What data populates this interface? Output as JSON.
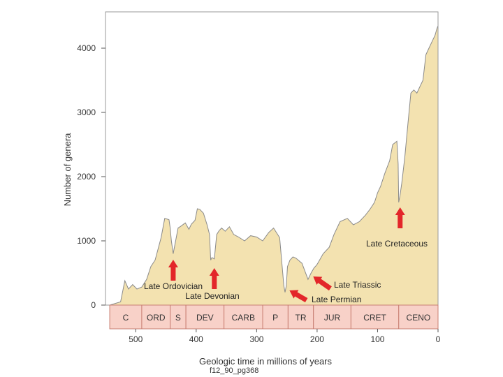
{
  "chart_data": {
    "type": "area",
    "xlabel": "Geologic time in millions of years",
    "ylabel": "Number of genera",
    "x_reversed": true,
    "xlim": [
      550,
      0
    ],
    "ylim": [
      0,
      4400
    ],
    "x_ticks": [
      500,
      400,
      300,
      200,
      100,
      0
    ],
    "y_ticks": [
      0,
      1000,
      2000,
      3000,
      4000
    ],
    "grid": false,
    "series": [
      {
        "x": [
          543,
          525,
          518,
          512,
          505,
          498,
          490,
          482,
          475,
          468,
          458,
          452,
          445,
          443,
          441,
          438,
          430,
          425,
          418,
          412,
          408,
          402,
          398,
          394,
          388,
          382,
          378,
          376,
          374,
          370,
          366,
          362,
          358,
          352,
          345,
          338,
          330,
          320,
          310,
          300,
          290,
          280,
          272,
          262,
          255,
          253,
          251,
          249,
          245,
          240,
          235,
          225,
          215,
          210,
          205,
          201,
          199,
          196,
          190,
          180,
          172,
          162,
          150,
          145,
          140,
          130,
          120,
          112,
          105,
          100,
          95,
          88,
          80,
          75,
          68,
          66,
          65,
          63,
          60,
          55,
          50,
          45,
          40,
          35,
          30,
          25,
          20,
          15,
          10,
          5,
          2,
          0
        ],
        "y": [
          0,
          50,
          380,
          250,
          320,
          250,
          280,
          400,
          600,
          700,
          1050,
          1350,
          1330,
          1200,
          1000,
          800,
          1200,
          1230,
          1280,
          1180,
          1260,
          1320,
          1500,
          1490,
          1430,
          1250,
          1100,
          700,
          740,
          720,
          1100,
          1160,
          1200,
          1150,
          1220,
          1100,
          1060,
          1000,
          1080,
          1060,
          1000,
          1130,
          1200,
          1050,
          300,
          200,
          300,
          600,
          700,
          750,
          730,
          650,
          400,
          500,
          580,
          620,
          650,
          700,
          800,
          900,
          1100,
          1300,
          1350,
          1300,
          1250,
          1300,
          1400,
          1500,
          1600,
          1750,
          1850,
          2050,
          2250,
          2500,
          2550,
          2200,
          1600,
          1700,
          1900,
          2300,
          2800,
          3300,
          3350,
          3300,
          3400,
          3500,
          3900,
          4000,
          4100,
          4200,
          4300,
          4350
        ]
      }
    ],
    "periods": [
      {
        "label": "C",
        "start": 543,
        "end": 490
      },
      {
        "label": "ORD",
        "start": 490,
        "end": 443
      },
      {
        "label": "S",
        "start": 443,
        "end": 417
      },
      {
        "label": "DEV",
        "start": 417,
        "end": 354
      },
      {
        "label": "CARB",
        "start": 354,
        "end": 290
      },
      {
        "label": "P",
        "start": 290,
        "end": 248
      },
      {
        "label": "TR",
        "start": 248,
        "end": 206
      },
      {
        "label": "JUR",
        "start": 206,
        "end": 144
      },
      {
        "label": "CRET",
        "start": 144,
        "end": 65
      },
      {
        "label": "CENO",
        "start": 65,
        "end": 0
      }
    ],
    "annotations": [
      {
        "text": "Late Ordovician",
        "x": 438
      },
      {
        "text": "Late Devonian",
        "x": 370
      },
      {
        "text": "Late Permian",
        "x": 248
      },
      {
        "text": "Late Triassic",
        "x": 203
      },
      {
        "text": "Late Cretaceous",
        "x": 65
      }
    ],
    "colors": {
      "fill": "#f3e2b0",
      "stroke": "#8a8a8a",
      "period_fill": "#f8d1c8",
      "period_stroke": "#c87e72",
      "arrow": "#e3262a"
    }
  },
  "caption": "f12_90_pg368"
}
